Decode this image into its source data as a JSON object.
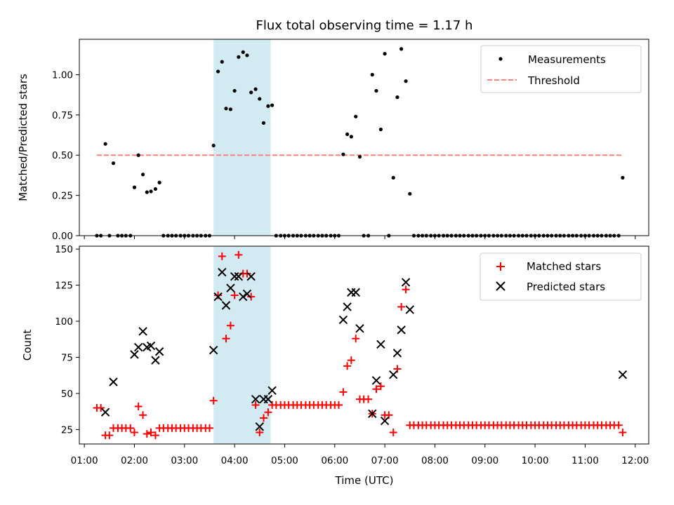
{
  "chart_data": {
    "type": "scatter",
    "title": "Flux total observing time = 1.17 h",
    "xlabel": "Time (UTC)",
    "x_ticks": [
      "01:00",
      "02:00",
      "03:00",
      "04:00",
      "05:00",
      "06:00",
      "07:00",
      "08:00",
      "09:00",
      "10:00",
      "11:00",
      "12:00"
    ],
    "xlim_hours": [
      0.9,
      12.27
    ],
    "shaded_interval_hours": [
      3.58,
      4.72
    ],
    "shade_color": "#add8e6",
    "top": {
      "ylabel": "Matched/Predicted stars",
      "ylim": [
        0,
        1.22
      ],
      "y_ticks": [
        "0.00",
        "0.25",
        "0.50",
        "0.75",
        "1.00"
      ],
      "legend": [
        "Measurements",
        "Threshold"
      ],
      "threshold": {
        "value": 0.5,
        "x_range_hours": [
          1.25,
          11.75
        ],
        "color": "#ff7f7f"
      },
      "measurements": [
        [
          1.25,
          0
        ],
        [
          1.33,
          0
        ],
        [
          1.42,
          0.57
        ],
        [
          1.5,
          0
        ],
        [
          1.58,
          0.45
        ],
        [
          1.67,
          0
        ],
        [
          1.75,
          0
        ],
        [
          1.83,
          0
        ],
        [
          1.92,
          0
        ],
        [
          2.0,
          0.3
        ],
        [
          2.08,
          0.5
        ],
        [
          2.17,
          0.38
        ],
        [
          2.25,
          0.27
        ],
        [
          2.33,
          0.275
        ],
        [
          2.42,
          0.29
        ],
        [
          2.5,
          0.33
        ],
        [
          2.58,
          0
        ],
        [
          2.67,
          0
        ],
        [
          2.75,
          0
        ],
        [
          2.83,
          0
        ],
        [
          2.92,
          0
        ],
        [
          3.0,
          0
        ],
        [
          3.08,
          0
        ],
        [
          3.17,
          0
        ],
        [
          3.25,
          0
        ],
        [
          3.33,
          0
        ],
        [
          3.42,
          0
        ],
        [
          3.5,
          0
        ],
        [
          3.58,
          0.56
        ],
        [
          3.67,
          1.02
        ],
        [
          3.75,
          1.08
        ],
        [
          3.83,
          0.79
        ],
        [
          3.92,
          0.785
        ],
        [
          4.0,
          0.9
        ],
        [
          4.08,
          1.11
        ],
        [
          4.17,
          1.14
        ],
        [
          4.25,
          1.12
        ],
        [
          4.33,
          0.89
        ],
        [
          4.42,
          0.91
        ],
        [
          4.5,
          0.85
        ],
        [
          4.58,
          0.7
        ],
        [
          4.67,
          0.805
        ],
        [
          4.75,
          0.81
        ],
        [
          4.83,
          0
        ],
        [
          4.92,
          0
        ],
        [
          5.0,
          0
        ],
        [
          5.08,
          0
        ],
        [
          5.17,
          0
        ],
        [
          5.25,
          0
        ],
        [
          5.33,
          0
        ],
        [
          5.42,
          0
        ],
        [
          5.5,
          0
        ],
        [
          5.58,
          0
        ],
        [
          5.67,
          0
        ],
        [
          5.75,
          0
        ],
        [
          5.83,
          0
        ],
        [
          5.92,
          0
        ],
        [
          6.0,
          0
        ],
        [
          6.08,
          0
        ],
        [
          6.17,
          0.505
        ],
        [
          6.25,
          0.63
        ],
        [
          6.33,
          0.615
        ],
        [
          6.42,
          0.74
        ],
        [
          6.5,
          0.49
        ],
        [
          6.58,
          0
        ],
        [
          6.67,
          0
        ],
        [
          6.75,
          1.0
        ],
        [
          6.83,
          0.9
        ],
        [
          6.92,
          0.66
        ],
        [
          7.0,
          1.13
        ],
        [
          7.08,
          0
        ],
        [
          7.17,
          0.36
        ],
        [
          7.25,
          0.86
        ],
        [
          7.33,
          1.16
        ],
        [
          7.42,
          0.96
        ],
        [
          7.5,
          0.26
        ],
        [
          7.58,
          0
        ],
        [
          7.67,
          0
        ],
        [
          7.75,
          0
        ],
        [
          7.83,
          0
        ],
        [
          7.92,
          0
        ],
        [
          8.0,
          0
        ],
        [
          8.08,
          0
        ],
        [
          8.17,
          0
        ],
        [
          8.25,
          0
        ],
        [
          8.33,
          0
        ],
        [
          8.42,
          0
        ],
        [
          8.5,
          0
        ],
        [
          8.58,
          0
        ],
        [
          8.67,
          0
        ],
        [
          8.75,
          0
        ],
        [
          8.83,
          0
        ],
        [
          8.92,
          0
        ],
        [
          9.0,
          0
        ],
        [
          9.08,
          0
        ],
        [
          9.17,
          0
        ],
        [
          9.25,
          0
        ],
        [
          9.33,
          0
        ],
        [
          9.42,
          0
        ],
        [
          9.5,
          0
        ],
        [
          9.58,
          0
        ],
        [
          9.67,
          0
        ],
        [
          9.75,
          0
        ],
        [
          9.83,
          0
        ],
        [
          9.92,
          0
        ],
        [
          10.0,
          0
        ],
        [
          10.08,
          0
        ],
        [
          10.17,
          0
        ],
        [
          10.25,
          0
        ],
        [
          10.33,
          0
        ],
        [
          10.42,
          0
        ],
        [
          10.5,
          0
        ],
        [
          10.58,
          0
        ],
        [
          10.67,
          0
        ],
        [
          10.75,
          0
        ],
        [
          10.83,
          0
        ],
        [
          10.92,
          0
        ],
        [
          11.0,
          0
        ],
        [
          11.08,
          0
        ],
        [
          11.17,
          0
        ],
        [
          11.25,
          0
        ],
        [
          11.33,
          0
        ],
        [
          11.42,
          0
        ],
        [
          11.5,
          0
        ],
        [
          11.58,
          0
        ],
        [
          11.67,
          0
        ],
        [
          11.75,
          0.36
        ]
      ]
    },
    "bottom": {
      "ylabel": "Count",
      "ylim": [
        15,
        152
      ],
      "y_ticks": [
        "25",
        "50",
        "75",
        "100",
        "125",
        "150"
      ],
      "legend": [
        "Matched stars",
        "Predicted stars"
      ],
      "matched": [
        [
          1.25,
          40
        ],
        [
          1.33,
          40
        ],
        [
          1.42,
          21
        ],
        [
          1.5,
          21
        ],
        [
          1.58,
          26
        ],
        [
          1.67,
          26
        ],
        [
          1.75,
          26
        ],
        [
          1.83,
          26
        ],
        [
          1.92,
          26
        ],
        [
          2.0,
          23
        ],
        [
          2.08,
          41
        ],
        [
          2.17,
          35
        ],
        [
          2.25,
          22
        ],
        [
          2.33,
          23
        ],
        [
          2.42,
          21
        ],
        [
          2.5,
          26
        ],
        [
          2.58,
          26
        ],
        [
          2.67,
          26
        ],
        [
          2.75,
          26
        ],
        [
          2.83,
          26
        ],
        [
          2.92,
          26
        ],
        [
          3.0,
          26
        ],
        [
          3.08,
          26
        ],
        [
          3.17,
          26
        ],
        [
          3.25,
          26
        ],
        [
          3.33,
          26
        ],
        [
          3.42,
          26
        ],
        [
          3.5,
          26
        ],
        [
          3.58,
          45
        ],
        [
          3.67,
          118
        ],
        [
          3.75,
          145
        ],
        [
          3.83,
          88
        ],
        [
          3.92,
          97
        ],
        [
          4.0,
          118
        ],
        [
          4.08,
          146
        ],
        [
          4.17,
          133
        ],
        [
          4.25,
          133
        ],
        [
          4.33,
          117
        ],
        [
          4.42,
          42
        ],
        [
          4.5,
          23
        ],
        [
          4.58,
          33
        ],
        [
          4.67,
          37
        ],
        [
          4.75,
          42
        ],
        [
          4.83,
          42
        ],
        [
          4.92,
          42
        ],
        [
          5.0,
          42
        ],
        [
          5.08,
          42
        ],
        [
          5.17,
          42
        ],
        [
          5.25,
          42
        ],
        [
          5.33,
          42
        ],
        [
          5.42,
          42
        ],
        [
          5.5,
          42
        ],
        [
          5.58,
          42
        ],
        [
          5.67,
          42
        ],
        [
          5.75,
          42
        ],
        [
          5.83,
          42
        ],
        [
          5.92,
          42
        ],
        [
          6.0,
          42
        ],
        [
          6.08,
          42
        ],
        [
          6.17,
          51
        ],
        [
          6.25,
          69
        ],
        [
          6.33,
          73
        ],
        [
          6.42,
          88
        ],
        [
          6.5,
          46
        ],
        [
          6.58,
          46
        ],
        [
          6.67,
          46
        ],
        [
          6.75,
          36
        ],
        [
          6.83,
          53
        ],
        [
          6.92,
          55
        ],
        [
          7.0,
          35
        ],
        [
          7.08,
          35
        ],
        [
          7.17,
          23
        ],
        [
          7.25,
          67
        ],
        [
          7.33,
          110
        ],
        [
          7.42,
          122
        ],
        [
          7.5,
          28
        ],
        [
          7.58,
          28
        ],
        [
          7.67,
          28
        ],
        [
          7.75,
          28
        ],
        [
          7.83,
          28
        ],
        [
          7.92,
          28
        ],
        [
          8.0,
          28
        ],
        [
          8.08,
          28
        ],
        [
          8.17,
          28
        ],
        [
          8.25,
          28
        ],
        [
          8.33,
          28
        ],
        [
          8.42,
          28
        ],
        [
          8.5,
          28
        ],
        [
          8.58,
          28
        ],
        [
          8.67,
          28
        ],
        [
          8.75,
          28
        ],
        [
          8.83,
          28
        ],
        [
          8.92,
          28
        ],
        [
          9.0,
          28
        ],
        [
          9.08,
          28
        ],
        [
          9.17,
          28
        ],
        [
          9.25,
          28
        ],
        [
          9.33,
          28
        ],
        [
          9.42,
          28
        ],
        [
          9.5,
          28
        ],
        [
          9.58,
          28
        ],
        [
          9.67,
          28
        ],
        [
          9.75,
          28
        ],
        [
          9.83,
          28
        ],
        [
          9.92,
          28
        ],
        [
          10.0,
          28
        ],
        [
          10.08,
          28
        ],
        [
          10.17,
          28
        ],
        [
          10.25,
          28
        ],
        [
          10.33,
          28
        ],
        [
          10.42,
          28
        ],
        [
          10.5,
          28
        ],
        [
          10.58,
          28
        ],
        [
          10.67,
          28
        ],
        [
          10.75,
          28
        ],
        [
          10.83,
          28
        ],
        [
          10.92,
          28
        ],
        [
          11.0,
          28
        ],
        [
          11.08,
          28
        ],
        [
          11.17,
          28
        ],
        [
          11.25,
          28
        ],
        [
          11.33,
          28
        ],
        [
          11.42,
          28
        ],
        [
          11.5,
          28
        ],
        [
          11.58,
          28
        ],
        [
          11.67,
          28
        ],
        [
          11.75,
          23
        ]
      ],
      "predicted": [
        [
          1.42,
          37
        ],
        [
          1.58,
          58
        ],
        [
          2.0,
          77
        ],
        [
          2.08,
          82
        ],
        [
          2.17,
          93
        ],
        [
          2.25,
          82
        ],
        [
          2.33,
          83
        ],
        [
          2.42,
          73
        ],
        [
          2.5,
          79
        ],
        [
          3.58,
          80
        ],
        [
          3.67,
          117
        ],
        [
          3.75,
          134
        ],
        [
          3.83,
          111
        ],
        [
          3.92,
          123
        ],
        [
          4.0,
          131
        ],
        [
          4.08,
          131
        ],
        [
          4.17,
          117
        ],
        [
          4.25,
          119
        ],
        [
          4.33,
          131
        ],
        [
          4.42,
          46
        ],
        [
          4.5,
          27
        ],
        [
          4.58,
          46
        ],
        [
          4.67,
          46
        ],
        [
          4.75,
          52
        ],
        [
          6.17,
          101
        ],
        [
          6.25,
          110
        ],
        [
          6.33,
          120
        ],
        [
          6.42,
          120
        ],
        [
          6.5,
          95
        ],
        [
          6.75,
          36
        ],
        [
          6.83,
          59
        ],
        [
          6.92,
          84
        ],
        [
          7.0,
          31
        ],
        [
          7.17,
          63
        ],
        [
          7.25,
          78
        ],
        [
          7.33,
          94
        ],
        [
          7.42,
          127
        ],
        [
          7.5,
          108
        ],
        [
          11.75,
          63
        ]
      ]
    }
  }
}
